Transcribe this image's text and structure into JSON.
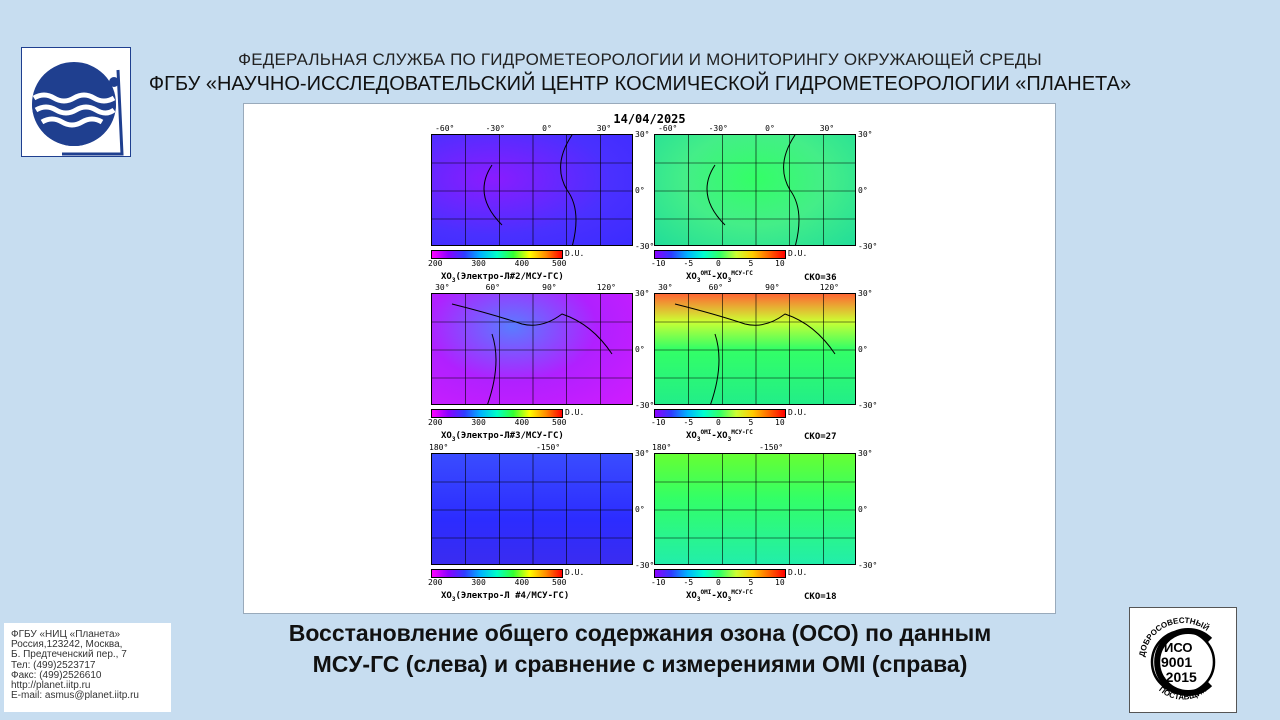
{
  "header": {
    "line1": "ФЕДЕРАЛЬНАЯ СЛУЖБА ПО ГИДРОМЕТЕОРОЛОГИИ И МОНИТОРИНГУ ОКРУЖАЮЩЕЙ СРЕДЫ",
    "line2": "ФГБУ «НАУЧНО-ИССЛЕДОВАТЕЛЬСКИЙ ЦЕНТР КОСМИЧЕСКОЙ ГИДРОМЕТЕОРОЛОГИИ «ПЛАНЕТА»"
  },
  "figure": {
    "date": "14/04/2025",
    "rows": [
      {
        "left_top_ticks": [
          "-60°",
          "-30°",
          "0°",
          "30°"
        ],
        "right_top_ticks": [
          "-60°",
          "-30°",
          "0°",
          "30°"
        ],
        "lat_ticks": [
          "30°",
          "0°",
          "-30°"
        ],
        "left_caption_main": "XO",
        "left_caption_rest": "(Электро-Л#2/МСУ-ГС)",
        "sko": "СКО=36"
      },
      {
        "left_top_ticks": [
          "30°",
          "60°",
          "90°",
          "120°"
        ],
        "right_top_ticks": [
          "30°",
          "60°",
          "90°",
          "120°"
        ],
        "lat_ticks": [
          "30°",
          "0°",
          "-30°"
        ],
        "left_caption_main": "XO",
        "left_caption_rest": "(Электро-Л#3/МСУ-ГС)",
        "sko": "СКО=27"
      },
      {
        "left_top_ticks": [
          "180°",
          "-150°"
        ],
        "right_top_ticks": [
          "180°",
          "-150°"
        ],
        "lat_ticks": [
          "30°",
          "0°",
          "-30°"
        ],
        "left_caption_main": "XO",
        "left_caption_rest": "(Электро-Л #4/МСУ-ГС)",
        "sko": "СКО=18"
      }
    ],
    "left_colorbar": {
      "ticks": [
        "200",
        "300",
        "400",
        "500"
      ],
      "unit": "D.U."
    },
    "right_colorbar": {
      "ticks": [
        "-10",
        "-5",
        "0",
        "5",
        "10"
      ],
      "unit": "D.U."
    },
    "diff_caption": {
      "omi": "OMI",
      "msu": "МСУ-ГС",
      "xo": "XO",
      "sub": "3"
    }
  },
  "contact": {
    "lines": [
      "ФГБУ «НИЦ «Планета»",
      "Россия,123242, Москва,",
      "Б. Предтеченский пер., 7",
      "Тел:   (499)2523717",
      "Факс: (499)2526610",
      "http://planet.iitp.ru",
      "E-mail: asmus@planet.iitp.ru"
    ]
  },
  "caption": {
    "line1": "Восстановление общего содержания озона (ОСО) по данным",
    "line2": "МСУ-ГС (слева) и сравнение с измерениями OMI (справа)"
  },
  "iso_badge": {
    "top": "ДОБРОСОВЕСТНЫЙ",
    "line1": "ИСО",
    "line2": "9001",
    "line3": "-2015",
    "bottom": "ПОСТАВЩИК"
  },
  "colors": {
    "background": "#c7ddf0",
    "logo_blue": "#1f3f8f",
    "ozone_purple": "#7a2cff",
    "ozone_blue": "#3b2cff",
    "diff_green": "#33ff66"
  }
}
